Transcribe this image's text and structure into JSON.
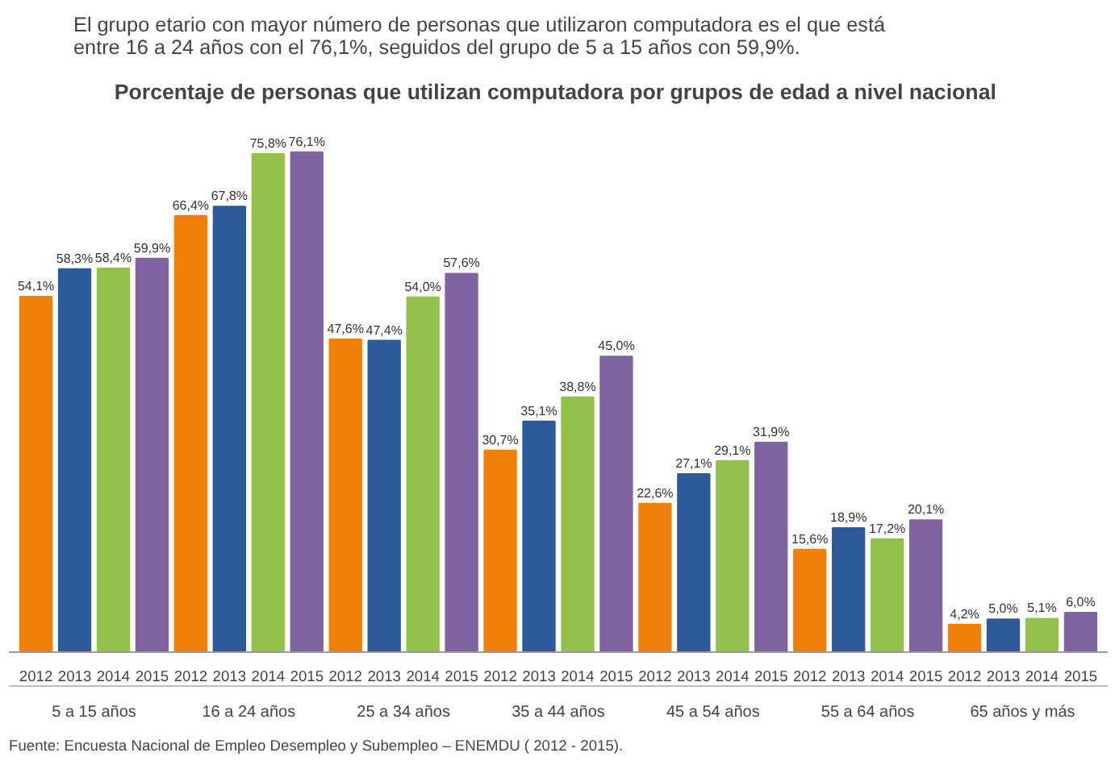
{
  "chart_data": {
    "type": "bar",
    "title": "Porcentaje de personas que utilizan computadora  por grupos de edad a nivel nacional",
    "subtitle": "El grupo etario con mayor número de personas que utilizaron computadora es el que está entre 16 a 24 años con el 76,1%, seguidos del grupo de 5 a 15 años con 59,9%.",
    "categories": [
      "5 a 15 años",
      "16 a 24 años",
      "25 a 34 años",
      "35 a 44 años",
      "45 a 54 años",
      "55 a 64 años",
      "65 años y más"
    ],
    "series": [
      {
        "name": "2012",
        "color": "#f07f09",
        "values": [
          54.1,
          66.4,
          47.6,
          30.7,
          22.6,
          15.6,
          4.2
        ],
        "value_labels": [
          "54,1%",
          "66,4%",
          "47,6%",
          "30,7%",
          "22,6%",
          "15,6%",
          "4,2%"
        ]
      },
      {
        "name": "2013",
        "color": "#2e5a9c",
        "values": [
          58.3,
          67.8,
          47.4,
          35.1,
          27.1,
          18.9,
          5.0
        ],
        "value_labels": [
          "58,3%",
          "67,8%",
          "47,4%",
          "35,1%",
          "27,1%",
          "18,9%",
          "5,0%"
        ]
      },
      {
        "name": "2014",
        "color": "#92c04a",
        "values": [
          58.4,
          75.8,
          54.0,
          38.8,
          29.1,
          17.2,
          5.1
        ],
        "value_labels": [
          "58,4%",
          "75,8%",
          "54,0%",
          "38,8%",
          "29,1%",
          "17,2%",
          "5,1%"
        ]
      },
      {
        "name": "2015",
        "color": "#8064a2",
        "values": [
          59.9,
          76.1,
          57.6,
          45.0,
          31.9,
          20.1,
          6.0
        ],
        "value_labels": [
          "59,9%",
          "76,1%",
          "57,6%",
          "45,0%",
          "31,9%",
          "20,1%",
          "6,0%"
        ]
      }
    ],
    "grid": false,
    "annotations": [
      "Fuente: Encuesta Nacional de Empleo Desempleo y Subempleo – ENEMDU ( 2012 - 2015)."
    ]
  }
}
